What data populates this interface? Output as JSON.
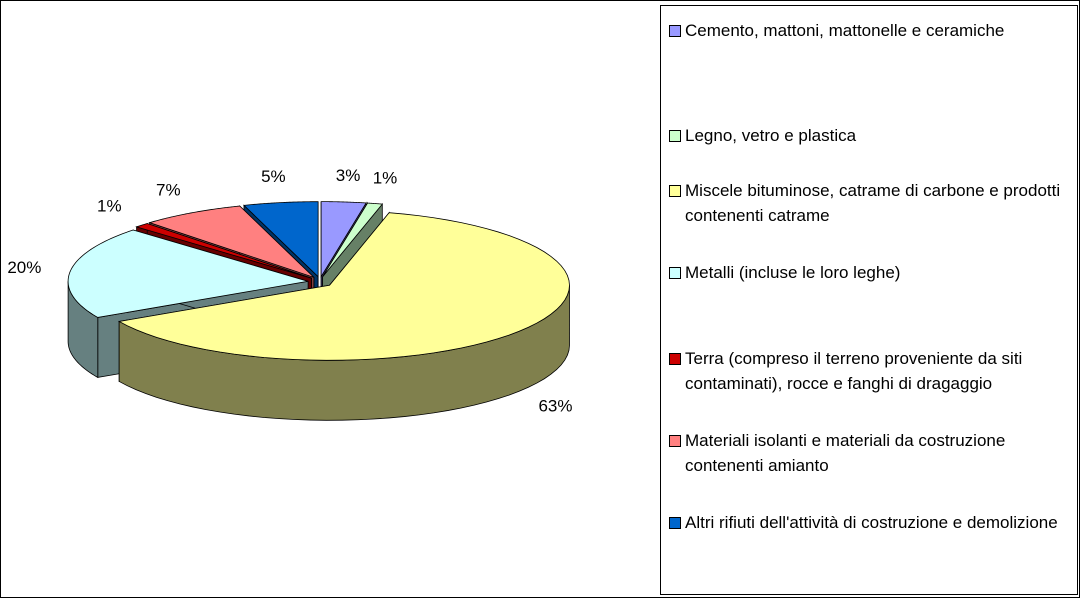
{
  "chart_data": {
    "type": "pie3d",
    "categories": [
      "Cemento, mattoni, mattonelle e ceramiche",
      "Legno, vetro e plastica",
      "Miscele bituminose, catrame di carbone e prodotti contenenti catrame",
      "Metalli (incluse le loro leghe)",
      "Terra (compreso il terreno proveniente da siti contaminati), rocce e fanghi di dragaggio",
      "Materiali isolanti e materiali da costruzione contenenti amianto",
      "Altri rifiuti dell'attività di costruzione e demolizione"
    ],
    "values": [
      3,
      1,
      63,
      20,
      1,
      7,
      5
    ],
    "value_labels": [
      "3%",
      "1%",
      "63%",
      "20%",
      "1%",
      "7%",
      "5%"
    ],
    "colors": [
      "#9999ff",
      "#ccffcc",
      "#ffff99",
      "#ccffff",
      "#cc0000",
      "#ff8080",
      "#0066cc"
    ],
    "legend": "right"
  }
}
